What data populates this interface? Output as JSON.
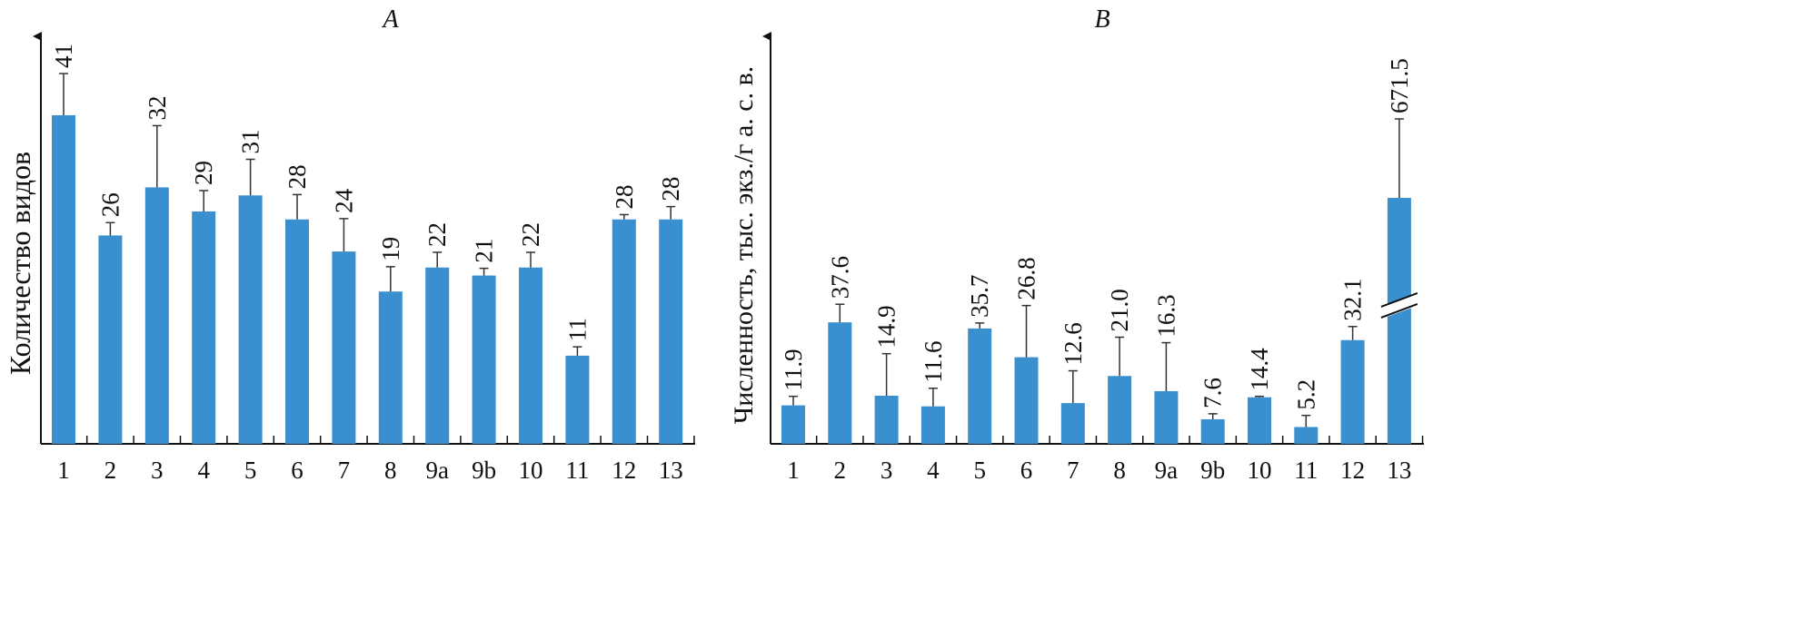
{
  "chart_data": [
    {
      "type": "bar",
      "title": "A",
      "xlabel": "",
      "ylabel": "Количество видов",
      "ylim": [
        0,
        46
      ],
      "grid": false,
      "bar_color": "#3a8fcf",
      "categories": [
        "1",
        "2",
        "3",
        "4",
        "5",
        "6",
        "7",
        "8",
        "9a",
        "9b",
        "10",
        "11",
        "12",
        "13"
      ],
      "values": [
        41,
        26,
        32,
        29,
        31,
        28,
        24,
        19,
        22,
        21,
        22,
        11,
        28,
        28
      ],
      "value_labels": [
        "41",
        "26",
        "32",
        "29",
        "31",
        "28",
        "24",
        "19",
        "22",
        "21",
        "22",
        "11",
        "28",
        "28"
      ],
      "errors": [
        5.2,
        1.6,
        7.7,
        2.6,
        4.5,
        3.1,
        4.1,
        3.1,
        1.9,
        0.9,
        1.9,
        1.1,
        0.6,
        1.6
      ]
    },
    {
      "type": "bar",
      "title": "B",
      "xlabel": "",
      "ylabel": "Численность, тыс. экз./г а. с. в.",
      "ylim": [
        0,
        126
      ],
      "axis_break_on": "13",
      "grid": false,
      "bar_color": "#3a8fcf",
      "categories": [
        "1",
        "2",
        "3",
        "4",
        "5",
        "6",
        "7",
        "8",
        "9a",
        "9b",
        "10",
        "11",
        "12",
        "13"
      ],
      "values": [
        11.9,
        37.6,
        14.9,
        11.6,
        35.7,
        26.8,
        12.6,
        21.0,
        16.3,
        7.6,
        14.4,
        5.2,
        32.1,
        671.5
      ],
      "value_labels": [
        "11.9",
        "37.6",
        "14.9",
        "11.6",
        "35.7",
        "26.8",
        "12.6",
        "21.0",
        "16.3",
        "7.6",
        "14.4",
        "5.2",
        "32.1",
        "671.5"
      ],
      "errors": [
        2.8,
        5.6,
        13,
        5.6,
        1.7,
        16,
        10,
        12,
        15,
        1.7,
        0.3,
        3.6,
        4.2,
        null
      ]
    }
  ]
}
